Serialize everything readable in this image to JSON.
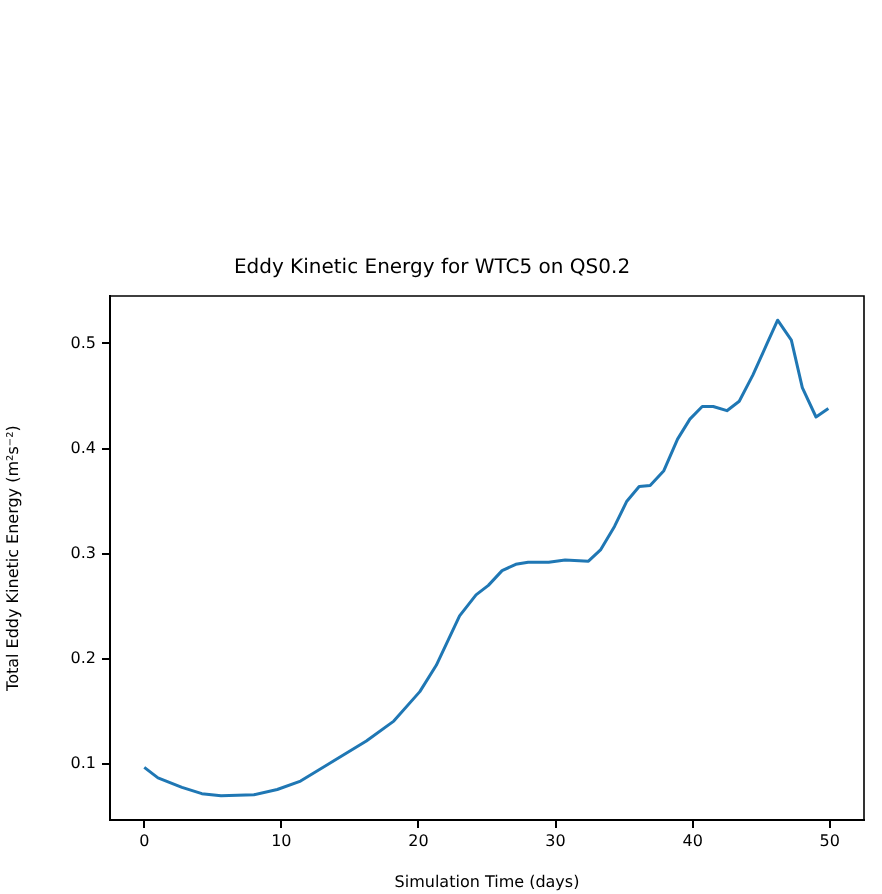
{
  "chart_data": {
    "type": "line",
    "title": "Eddy Kinetic Energy for WTC5 on QS0.2",
    "xlabel": "Simulation Time (days)",
    "ylabel": "Total Eddy Kinetic Energy (m²s⁻²)",
    "x": [
      0,
      1.0,
      2.75,
      4.2,
      5.6,
      8.0,
      9.7,
      11.4,
      13.8,
      16.2,
      18.2,
      20.1,
      21.3,
      23.0,
      24.2,
      25.1,
      26.1,
      27.1,
      28.0,
      29.5,
      30.7,
      32.4,
      33.3,
      34.3,
      35.2,
      36.1,
      36.9,
      37.9,
      38.9,
      39.8,
      40.7,
      41.5,
      42.5,
      43.4,
      44.4,
      45.4,
      46.2,
      47.2,
      48.0,
      49.0,
      49.9
    ],
    "series": [
      {
        "color": "#1f77b4",
        "values": [
          0.097,
          0.087,
          0.078,
          0.072,
          0.07,
          0.071,
          0.076,
          0.084,
          0.103,
          0.122,
          0.141,
          0.169,
          0.194,
          0.241,
          0.261,
          0.27,
          0.284,
          0.29,
          0.292,
          0.292,
          0.294,
          0.293,
          0.304,
          0.326,
          0.35,
          0.364,
          0.365,
          0.379,
          0.409,
          0.428,
          0.44,
          0.44,
          0.436,
          0.445,
          0.47,
          0.499,
          0.522,
          0.503,
          0.458,
          0.43,
          0.438
        ]
      }
    ],
    "xlim": [
      -2.5,
      52.5
    ],
    "xticks": [
      0,
      10,
      20,
      30,
      40,
      50
    ],
    "ylim": [
      0.047,
      0.545
    ],
    "yticks": [
      0.1,
      0.2,
      0.3,
      0.4,
      0.5
    ],
    "grid": false,
    "legend": false,
    "marker": "none",
    "line_style": "solid"
  }
}
